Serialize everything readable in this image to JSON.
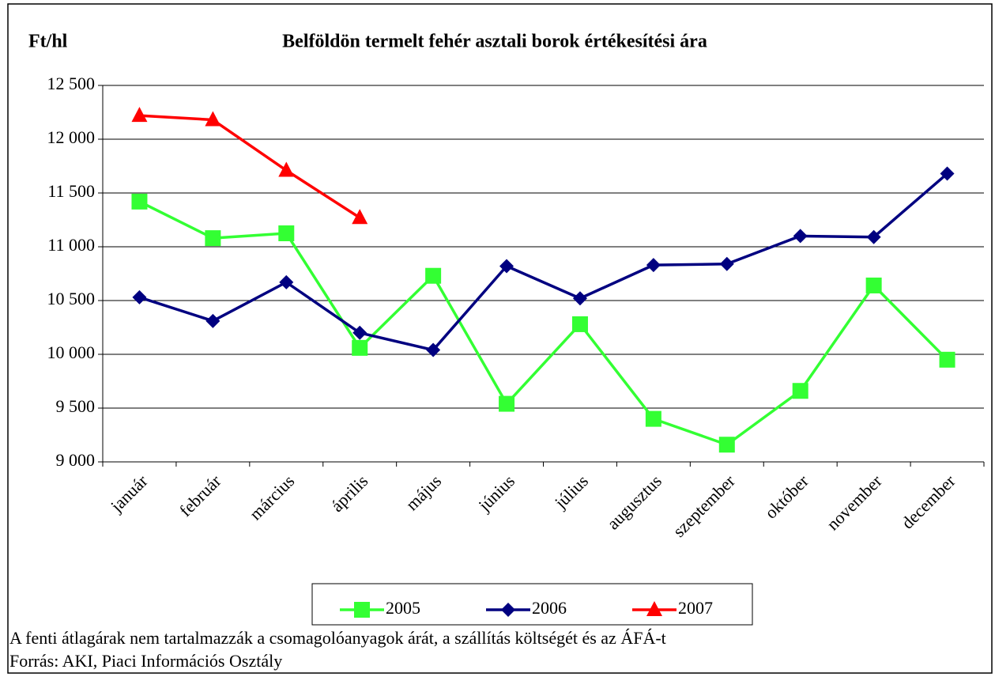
{
  "chart_data": {
    "type": "line",
    "title": "Belföldön termelt fehér asztali borok értékesítési ára",
    "y_label": "Ft/hl",
    "categories": [
      "január",
      "február",
      "március",
      "április",
      "május",
      "június",
      "július",
      "augusztus",
      "szeptember",
      "október",
      "november",
      "december"
    ],
    "series": [
      {
        "name": "2005",
        "color": "#33ff33",
        "marker": "square",
        "values": [
          11420,
          11080,
          11125,
          10060,
          10730,
          9540,
          10280,
          9400,
          9160,
          9660,
          10640,
          9950
        ]
      },
      {
        "name": "2006",
        "color": "#000080",
        "marker": "diamond",
        "values": [
          10530,
          10310,
          10670,
          10200,
          10040,
          10820,
          10520,
          10830,
          10840,
          11100,
          11090,
          11680
        ]
      },
      {
        "name": "2007",
        "color": "#ff0000",
        "marker": "triangle",
        "values": [
          12220,
          12180,
          11710,
          11270,
          null,
          null,
          null,
          null,
          null,
          null,
          null,
          null
        ]
      }
    ],
    "ylim": [
      9000,
      12500
    ],
    "yticks": [
      {
        "value": 9000,
        "label": "9 000"
      },
      {
        "value": 9500,
        "label": "9 500"
      },
      {
        "value": 10000,
        "label": "10 000"
      },
      {
        "value": 10500,
        "label": "10 500"
      },
      {
        "value": 11000,
        "label": "11 000"
      },
      {
        "value": 11500,
        "label": "11 500"
      },
      {
        "value": 12000,
        "label": "12 000"
      },
      {
        "value": 12500,
        "label": "12 500"
      }
    ],
    "grid": true,
    "legend": "bottom",
    "notes": [
      "A fenti átlagárak nem tartalmazzák a csomagolóanyagok árát, a szállítás költségét és az ÁFÁ-t",
      "Forrás: AKI, Piaci Információs Osztály"
    ]
  }
}
